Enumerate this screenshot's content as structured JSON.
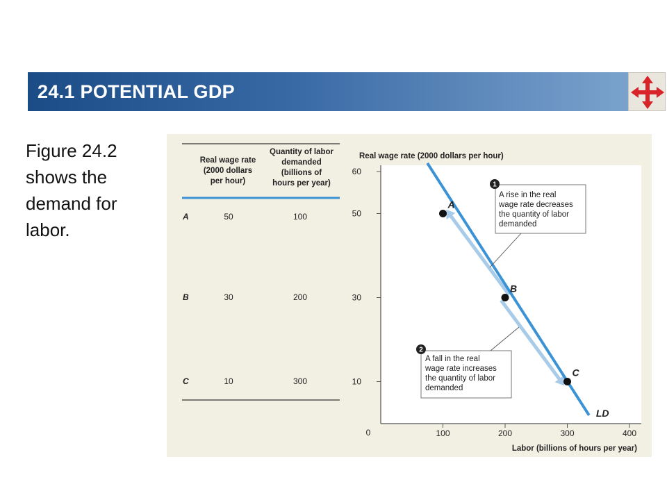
{
  "header": {
    "title": "24.1 POTENTIAL  GDP"
  },
  "nav": {
    "icon": "four-way-arrows-icon"
  },
  "body_text": "Figure 24.2 shows the demand for labor.",
  "table": {
    "columns": [
      [
        "Real wage rate",
        "(2000 dollars",
        "per hour)"
      ],
      [
        "Quantity of labor",
        "demanded",
        "(billions of",
        "hours per year)"
      ]
    ],
    "rows": [
      {
        "label": "A",
        "wage": "50",
        "quantity": "100"
      },
      {
        "label": "B",
        "wage": "30",
        "quantity": "200"
      },
      {
        "label": "C",
        "wage": "10",
        "quantity": "300"
      }
    ]
  },
  "annotations": [
    {
      "number": "1",
      "lines": [
        "A rise in the real",
        "wage rate decreases",
        "the quantity of labor",
        "demanded"
      ]
    },
    {
      "number": "2",
      "lines": [
        "A fall in the real",
        "wage rate increases",
        "the quantity of labor",
        "demanded"
      ]
    }
  ],
  "colors": {
    "accent": "#3b93d6",
    "arrow": "#a7cbe9",
    "header_start": "#1c4c86",
    "header_end": "#7aa2cc"
  },
  "chart_data": {
    "type": "line",
    "title": "",
    "xlabel": "Labor (billions of hours per year)",
    "ylabel": "Real wage rate (2000 dollars per hour)",
    "xlim": [
      0,
      400
    ],
    "ylim": [
      0,
      60
    ],
    "x_ticks": [
      100,
      200,
      300,
      400
    ],
    "y_ticks": [
      10,
      30,
      50,
      60
    ],
    "origin_label": "0",
    "grid": false,
    "series": [
      {
        "name": "LD",
        "x": [
          75,
          335
        ],
        "y": [
          62,
          2
        ]
      }
    ],
    "points": [
      {
        "label": "A",
        "x": 100,
        "y": 50
      },
      {
        "label": "B",
        "x": 200,
        "y": 30
      },
      {
        "label": "C",
        "x": 300,
        "y": 10
      }
    ]
  }
}
